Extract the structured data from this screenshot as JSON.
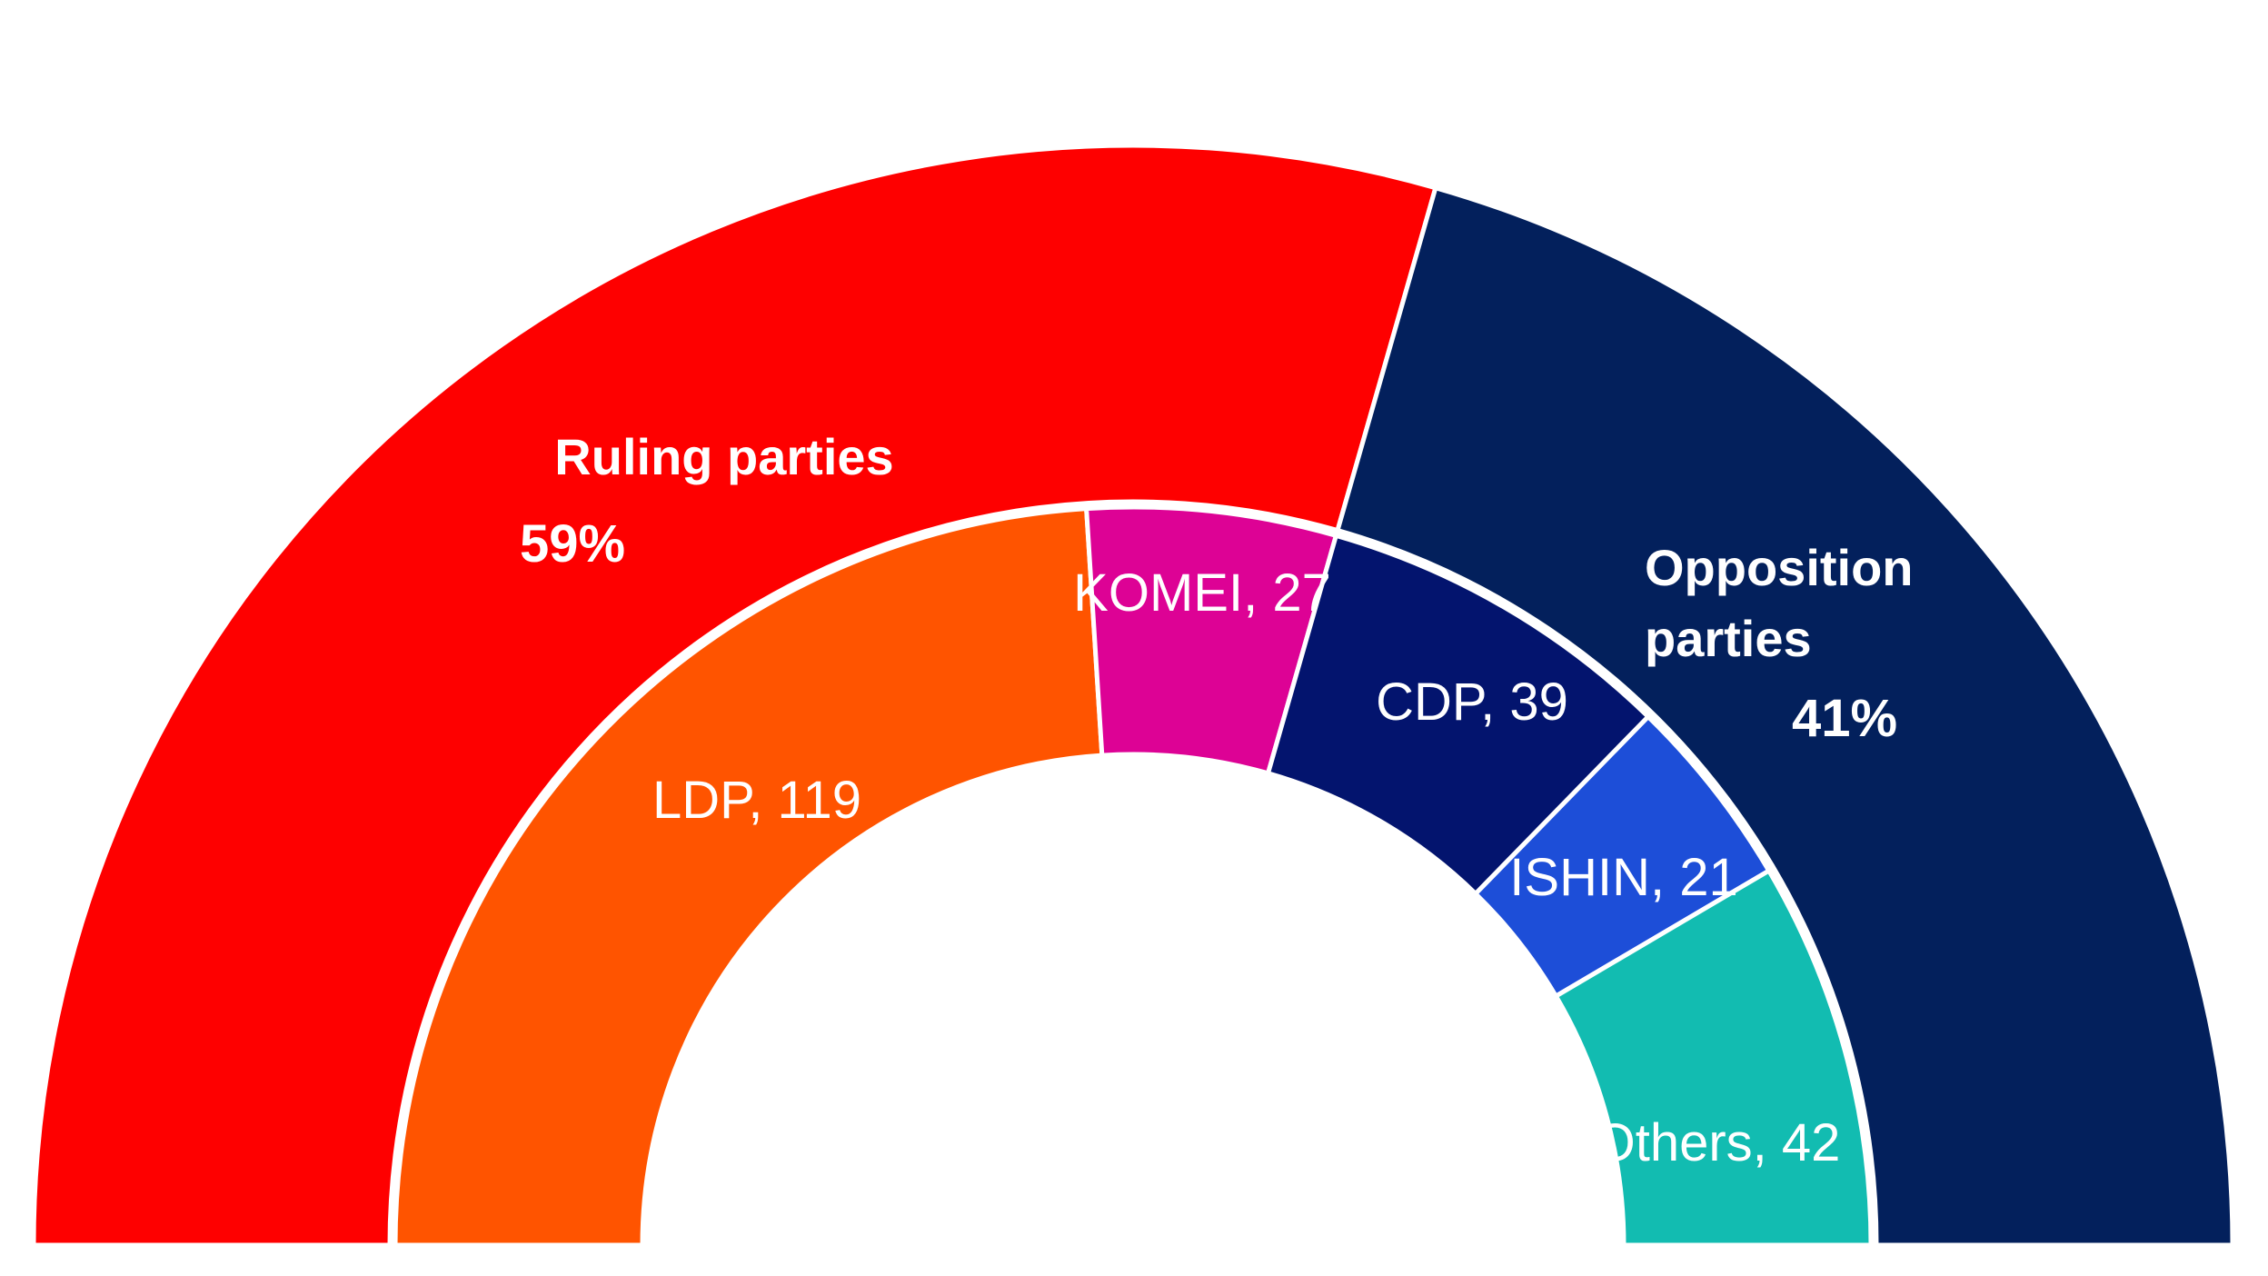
{
  "chart_data": {
    "type": "pie",
    "subtype": "semicircle-nested-donut",
    "outer_ring": [
      {
        "name_lines": [
          "Ruling parties"
        ],
        "percent_label": "59%",
        "value": 146,
        "color": "#fe0000"
      },
      {
        "name_lines": [
          "Opposition",
          "parties"
        ],
        "percent_label": "41%",
        "value": 102,
        "color": "#03205c"
      }
    ],
    "inner_ring": [
      {
        "label": "LDP, 119",
        "value": 119,
        "color": "#ff5400"
      },
      {
        "label": "KOMEI, 27",
        "value": 27,
        "color": "#dd0295"
      },
      {
        "label": "CDP, 39",
        "value": 39,
        "color": "#03146e"
      },
      {
        "label": "ISHIN, 21",
        "value": 21,
        "color": "#1d4ed8"
      },
      {
        "label": "Others, 42",
        "value": 42,
        "color": "#12bcb1"
      }
    ],
    "separator_color": "#ffffff",
    "legend": "none"
  }
}
